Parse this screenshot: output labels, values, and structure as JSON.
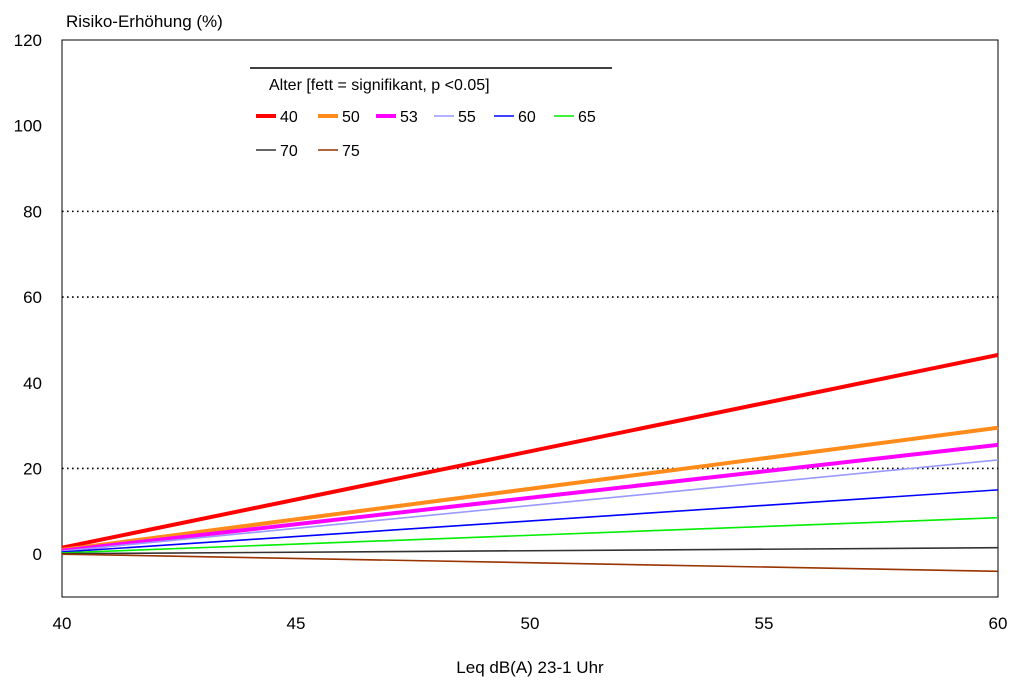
{
  "chart_data": {
    "type": "line",
    "title": "",
    "ylabel": "Risiko-Erhöhung (%)",
    "xlabel": "Leq dB(A) 23-1 Uhr",
    "xlim": [
      40,
      60
    ],
    "ylim": [
      -10,
      120
    ],
    "xticks": [
      "40",
      "45",
      "50",
      "55",
      "60"
    ],
    "yticks": [
      "0",
      "20",
      "40",
      "60",
      "80",
      "100",
      "120"
    ],
    "gridlines_y": [
      20,
      60,
      80
    ],
    "legend": {
      "placement": "top-left",
      "title": "Alter [fett = signifikant, p <0.05]"
    },
    "series": [
      {
        "name": "40",
        "color": "#ff0000",
        "bold": true,
        "x": [
          40,
          60
        ],
        "y": [
          1.5,
          46.5
        ]
      },
      {
        "name": "50",
        "color": "#ff8c1a",
        "bold": true,
        "x": [
          40,
          60
        ],
        "y": [
          1.0,
          29.5
        ]
      },
      {
        "name": "53",
        "color": "#ff00ff",
        "bold": true,
        "x": [
          40,
          60
        ],
        "y": [
          0.8,
          25.5
        ]
      },
      {
        "name": "55",
        "color": "#9999ff",
        "bold": false,
        "x": [
          40,
          60
        ],
        "y": [
          0.7,
          22.0
        ]
      },
      {
        "name": "60",
        "color": "#0000ff",
        "bold": false,
        "x": [
          40,
          60
        ],
        "y": [
          0.5,
          15.0
        ]
      },
      {
        "name": "65",
        "color": "#00ee00",
        "bold": false,
        "x": [
          40,
          60
        ],
        "y": [
          0.3,
          8.5
        ]
      },
      {
        "name": "70",
        "color": "#333333",
        "bold": false,
        "x": [
          40,
          60
        ],
        "y": [
          0.1,
          1.5
        ]
      },
      {
        "name": "75",
        "color": "#993300",
        "bold": false,
        "x": [
          40,
          60
        ],
        "y": [
          0.0,
          -4.0
        ]
      }
    ]
  }
}
